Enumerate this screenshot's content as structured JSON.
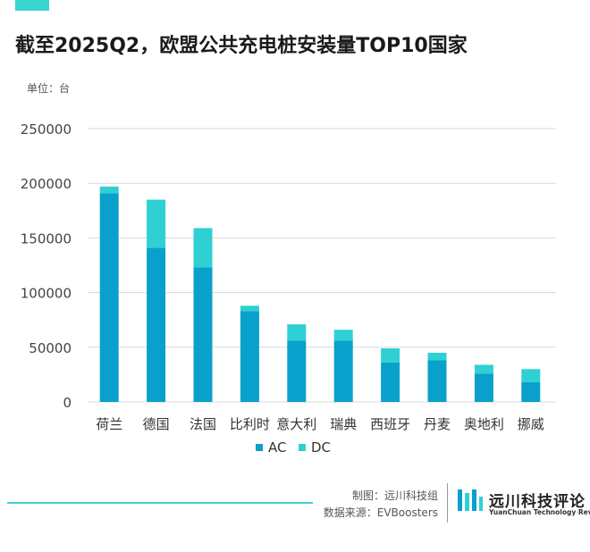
{
  "title": "截至2025Q2，欧盟公共充电桩安装量TOP10国家",
  "unit_label": "单位：台",
  "footer": {
    "credit": "制图：远川科技组",
    "source": "数据来源：EVBoosters"
  },
  "brand": {
    "name_cn": "远川科技评论",
    "name_en": "YuanChuan Technology Review"
  },
  "colors": {
    "ac": "#0aa0cc",
    "dc": "#2fd0d4",
    "accent": "#3ad3cf",
    "grid": "#d9d9d9"
  },
  "chart_data": {
    "type": "bar",
    "stacked": true,
    "categories": [
      "荷兰",
      "德国",
      "法国",
      "比利时",
      "意大利",
      "瑞典",
      "西班牙",
      "丹麦",
      "奥地利",
      "挪威"
    ],
    "series": [
      {
        "name": "AC",
        "values": [
          191000,
          141000,
          123000,
          83000,
          56000,
          56000,
          36000,
          38000,
          26000,
          18000
        ]
      },
      {
        "name": "DC",
        "values": [
          6000,
          44000,
          36000,
          5000,
          15000,
          10000,
          13000,
          7000,
          8000,
          12000
        ]
      }
    ],
    "ylim": [
      0,
      250000
    ],
    "yticks": [
      0,
      50000,
      100000,
      150000,
      200000,
      250000
    ],
    "ytick_labels": [
      "0",
      "50000",
      "100000",
      "150000",
      "200000",
      "250000"
    ],
    "grid": true,
    "legend": "bottom-center"
  }
}
